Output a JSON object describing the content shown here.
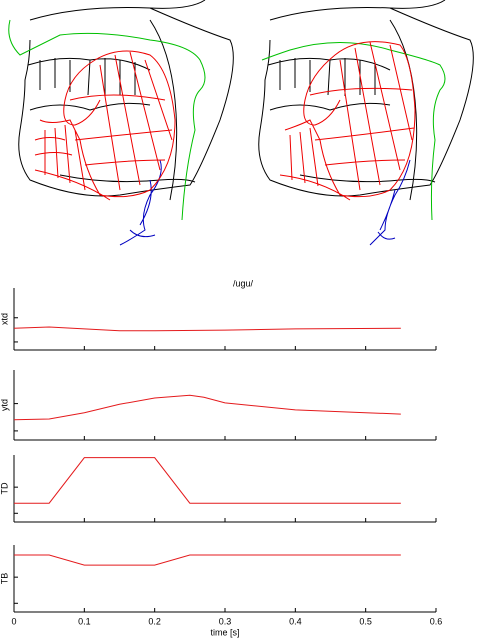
{
  "title": "/ugu/",
  "xlabel": "time [s]",
  "chart_data": [
    {
      "type": "line",
      "ylabel": "xtd",
      "xlim": [
        0,
        0.6
      ],
      "xticks": [
        0,
        0.1,
        0.2,
        0.3,
        0.4,
        0.5,
        0.6
      ],
      "ylim": [
        0,
        1
      ],
      "yticks": [
        0.13,
        0.52
      ],
      "x": [
        0,
        0.05,
        0.1,
        0.15,
        0.2,
        0.3,
        0.4,
        0.55
      ],
      "series": [
        {
          "color": "#e41a1c",
          "values": [
            0.35,
            0.37,
            0.34,
            0.31,
            0.31,
            0.32,
            0.34,
            0.35
          ]
        }
      ]
    },
    {
      "type": "line",
      "ylabel": "ytd",
      "xlim": [
        0,
        0.6
      ],
      "xticks": [
        0,
        0.1,
        0.2,
        0.3,
        0.4,
        0.5,
        0.6
      ],
      "ylim": [
        0,
        1
      ],
      "yticks": [
        0.13,
        0.52
      ],
      "x": [
        0,
        0.05,
        0.1,
        0.15,
        0.2,
        0.25,
        0.27,
        0.3,
        0.4,
        0.5,
        0.55
      ],
      "series": [
        {
          "color": "#e41a1c",
          "values": [
            0.29,
            0.3,
            0.39,
            0.51,
            0.6,
            0.64,
            0.61,
            0.53,
            0.43,
            0.39,
            0.37
          ]
        }
      ]
    },
    {
      "type": "line",
      "ylabel": "TD",
      "xlim": [
        0,
        0.6
      ],
      "xticks": [
        0,
        0.1,
        0.2,
        0.3,
        0.4,
        0.5,
        0.6
      ],
      "ylim": [
        0,
        1
      ],
      "yticks": [
        0.13,
        0.52
      ],
      "x": [
        0,
        0.05,
        0.1,
        0.2,
        0.25,
        0.55
      ],
      "series": [
        {
          "color": "#e41a1c",
          "values": [
            0.28,
            0.28,
            0.96,
            0.96,
            0.28,
            0.28
          ]
        }
      ]
    },
    {
      "type": "line",
      "ylabel": "TB",
      "xlim": [
        0,
        0.6
      ],
      "xticks": [
        0,
        0.1,
        0.2,
        0.3,
        0.4,
        0.5,
        0.6
      ],
      "ylim": [
        0,
        1
      ],
      "yticks": [
        0.13,
        0.52
      ],
      "x": [
        0,
        0.05,
        0.1,
        0.2,
        0.25,
        0.55
      ],
      "series": [
        {
          "color": "#e41a1c",
          "values": [
            0.85,
            0.85,
            0.7,
            0.7,
            0.85,
            0.85
          ]
        }
      ]
    }
  ]
}
